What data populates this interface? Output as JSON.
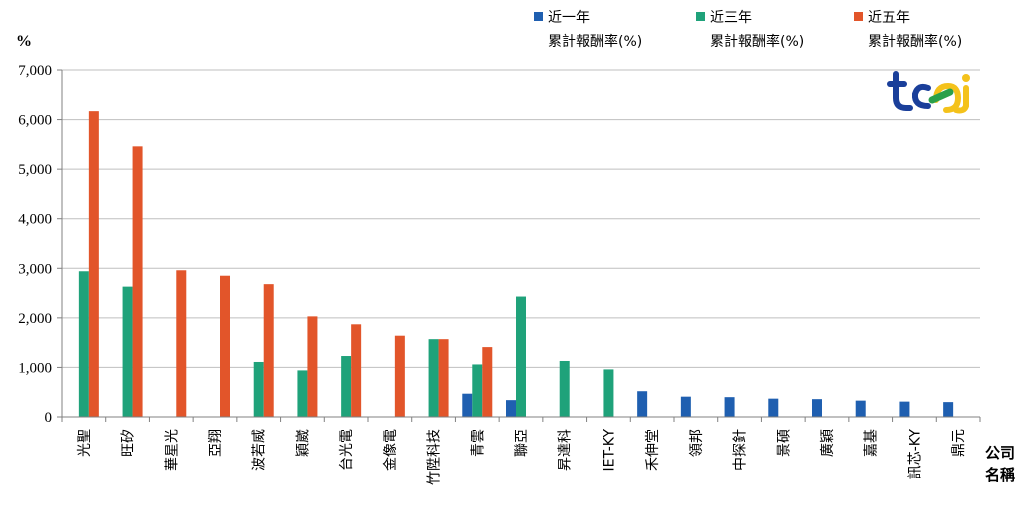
{
  "chart_data": {
    "type": "bar",
    "ylabel": "%",
    "xlabel": "公司名稱",
    "ylim": [
      0,
      7000
    ],
    "yticks": [
      "0",
      "1,000",
      "2,000",
      "3,000",
      "4,000",
      "5,000",
      "6,000",
      "7,000"
    ],
    "grid": true,
    "legend_position": "top-right",
    "categories": [
      "光聖",
      "旺矽",
      "華星光",
      "亞翔",
      "波若威",
      "穎崴",
      "台光電",
      "金像電",
      "竹陞科技",
      "青雲",
      "聯亞",
      "昇達科",
      "IET-KY",
      "禾伸堂",
      "領邦",
      "中探針",
      "景碩",
      "廣穎",
      "嘉基",
      "訊芯-KY",
      "鼎元"
    ],
    "series": [
      {
        "name": "近一年累計報酬率(%)",
        "legend_line1": "近一年",
        "legend_line2": "累計報酬率(%)",
        "color": "#1f5fb0",
        "values": [
          null,
          null,
          null,
          null,
          null,
          null,
          null,
          null,
          null,
          470,
          340,
          null,
          null,
          520,
          410,
          400,
          370,
          360,
          330,
          310,
          300
        ]
      },
      {
        "name": "近三年累計報酬率(%)",
        "legend_line1": "近三年",
        "legend_line2": "累計報酬率(%)",
        "color": "#1fa27a",
        "values": [
          2940,
          2630,
          null,
          null,
          1110,
          940,
          1230,
          null,
          1570,
          1060,
          2430,
          1130,
          960,
          null,
          null,
          null,
          null,
          null,
          null,
          null,
          null
        ]
      },
      {
        "name": "近五年累計報酬率(%)",
        "legend_line1": "近五年",
        "legend_line2": "累計報酬率(%)",
        "color": "#e2552a",
        "values": [
          6170,
          5460,
          2960,
          2850,
          2680,
          2030,
          1870,
          1640,
          1570,
          1410,
          null,
          null,
          null,
          null,
          null,
          null,
          null,
          null,
          null,
          null,
          null
        ]
      }
    ]
  },
  "logo": {
    "text": "tcei"
  }
}
